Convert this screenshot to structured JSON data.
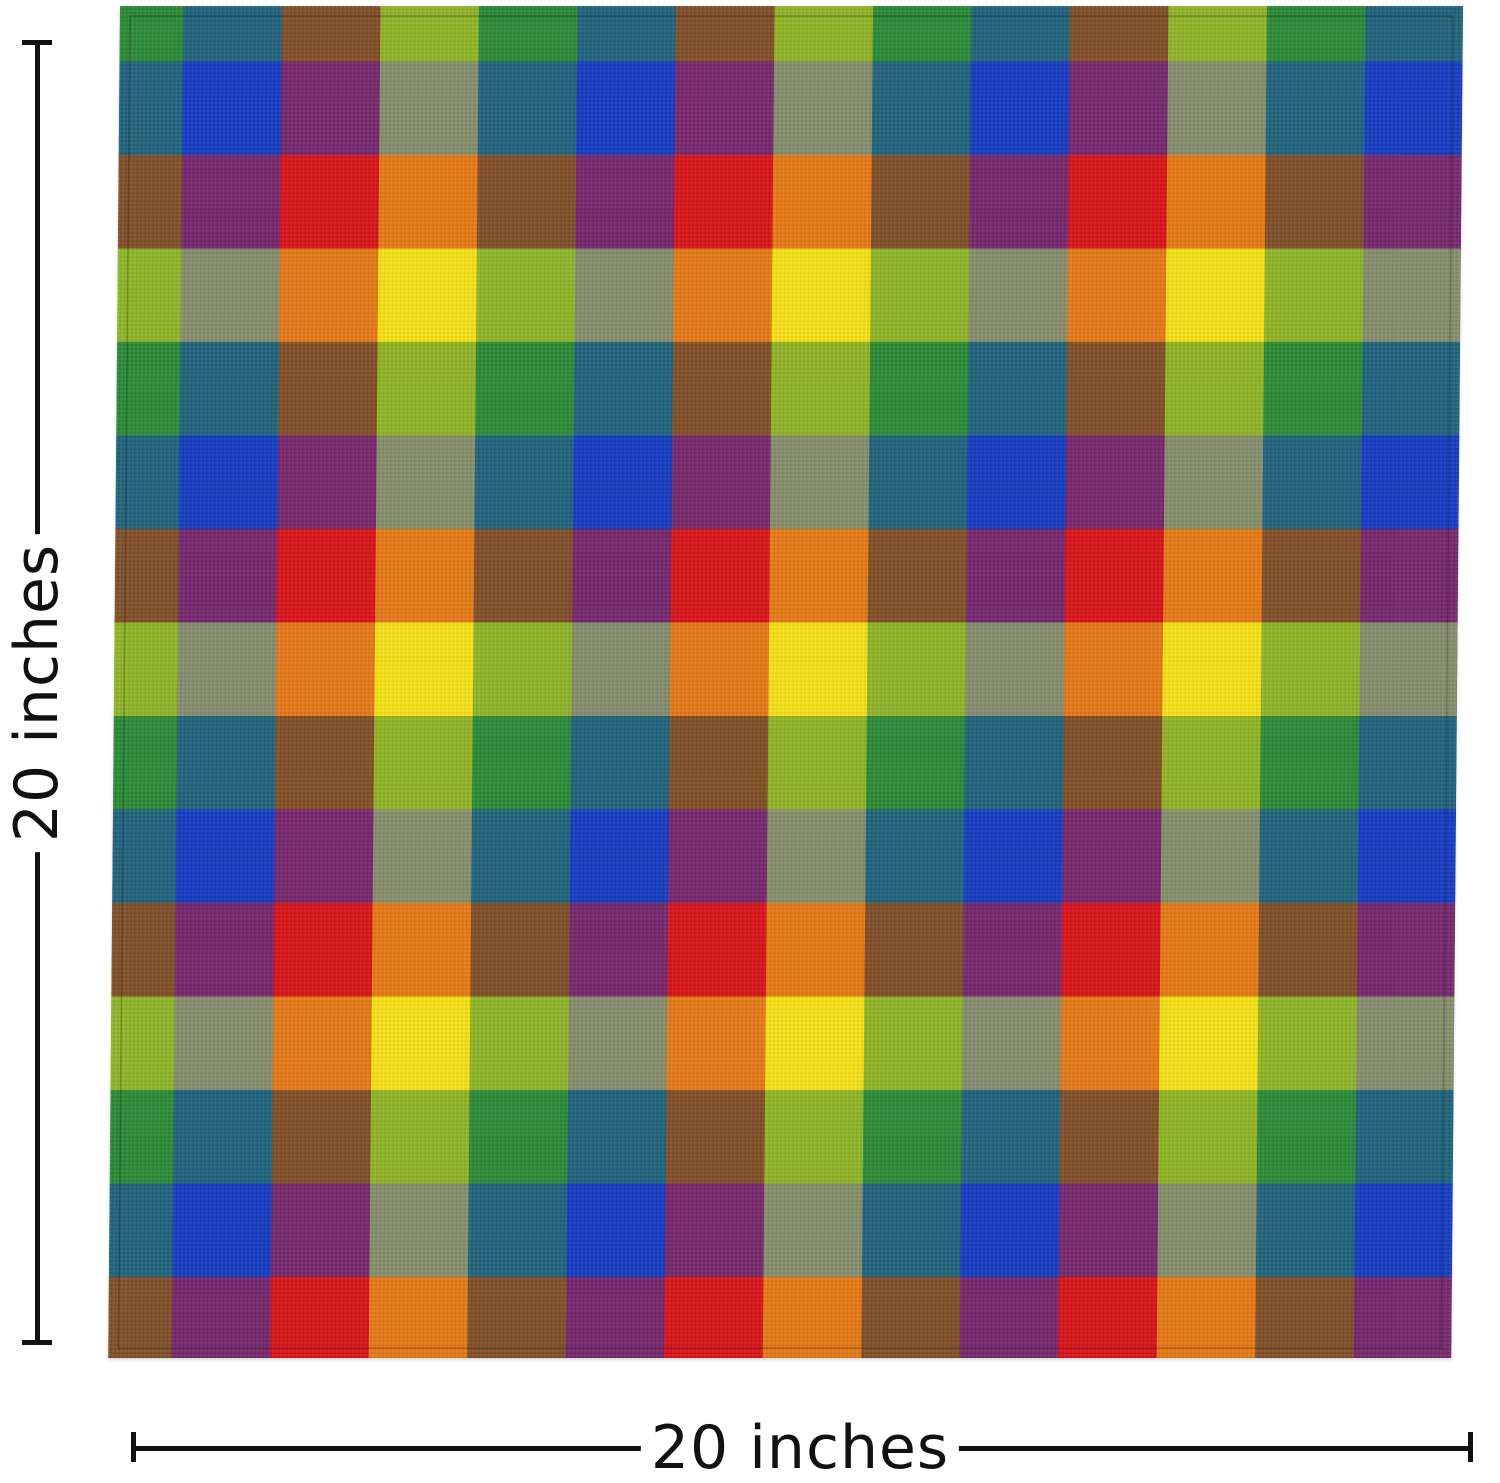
{
  "measurements": {
    "height_label": "20 inches",
    "width_label": "20 inches"
  },
  "fabric": {
    "pattern": "rainbow plaid cloth napkin",
    "stripe_colors": [
      "#2e8b3a",
      "#1a3fc2",
      "#d6181c",
      "#f2de1a"
    ],
    "row_sequence": [
      "green",
      "blue",
      "red",
      "yellow"
    ],
    "col_sequence": [
      "green",
      "blue",
      "red",
      "yellow"
    ]
  }
}
